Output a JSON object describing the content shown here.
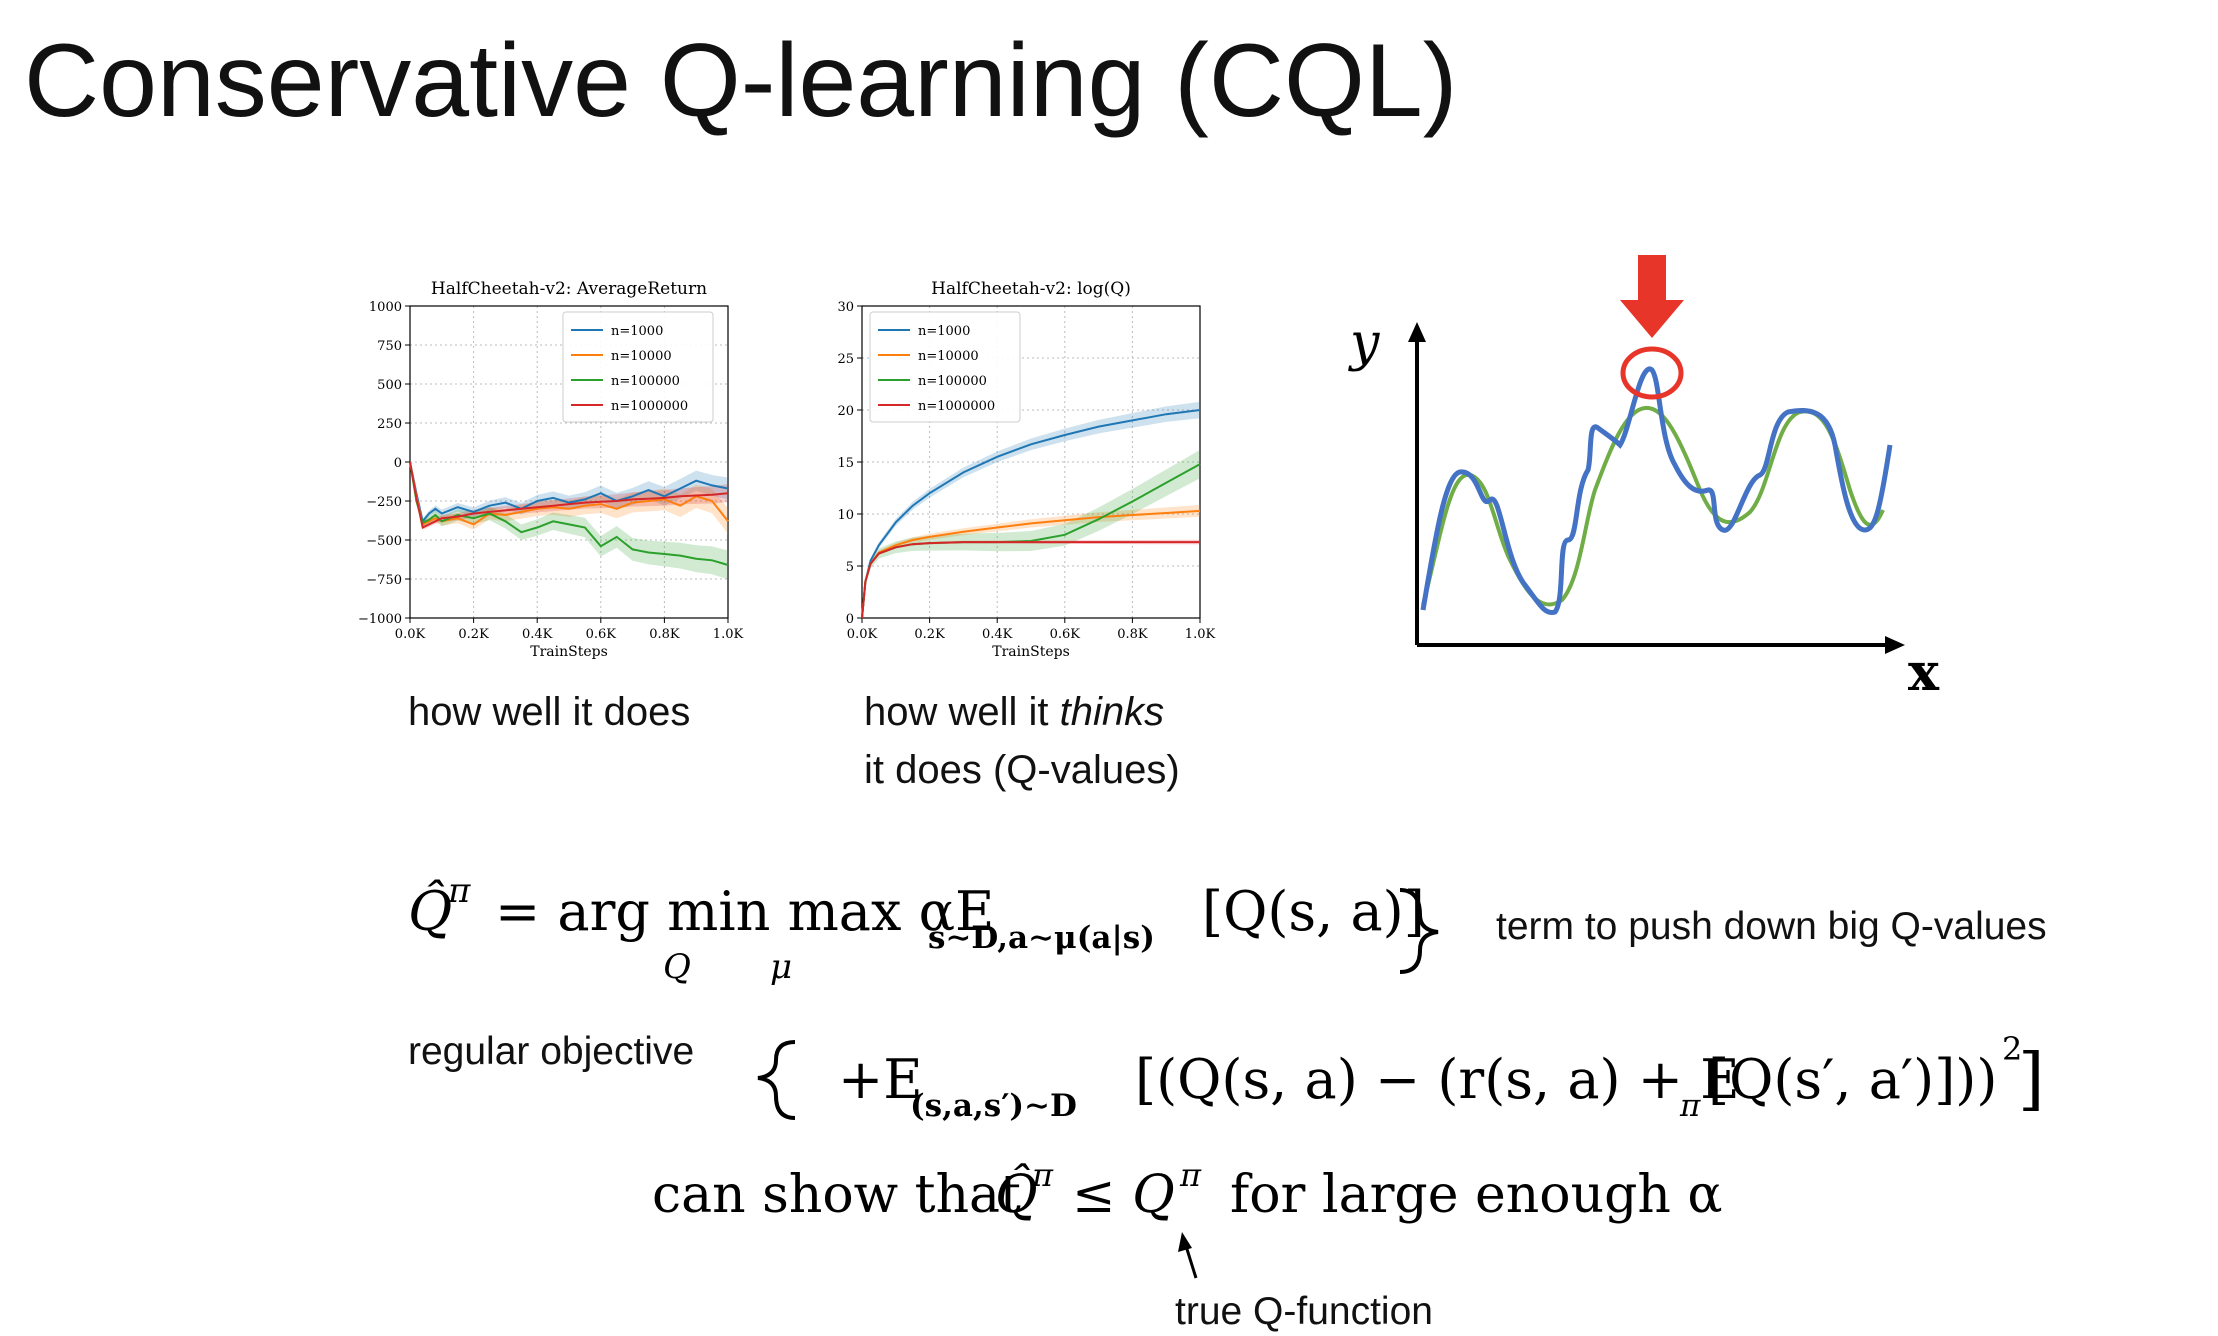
{
  "slide": {
    "title": "Conservative Q-learning (CQL)"
  },
  "captions": {
    "left": "how well it does",
    "middle_line1_pre": "how well it ",
    "middle_line1_em": "thinks",
    "middle_line2": "it does (Q-values)"
  },
  "sketch": {
    "y_label": "y",
    "x_label": "x",
    "colors": {
      "fit": "#4472c4",
      "true": "#70ad47",
      "marker": "#e8352a"
    }
  },
  "equations": {
    "line1_lhs": "Q̂",
    "line1_sup": "π",
    "line1_eq": "= arg min max αE",
    "line1_min_sub": "Q",
    "line1_max_sub": "μ",
    "line1_E_sub": "s∼D,a∼μ(a|s)",
    "line1_rhs": "[Q(s, a)]",
    "line2_E": "+E",
    "line2_E_sub": "(s,a,s′)∼D",
    "line2_body": "[(Q(s, a) − (r(s, a) + E",
    "line2_pi_sub": "π",
    "line2_body2": "[Q(s′, a′)]))",
    "line2_sq": "2",
    "line2_close": "]",
    "line3_pre": "can show that",
    "line3_Qhat": "Q̂",
    "line3_pi1": "π",
    "line3_leq": "≤ Q",
    "line3_pi2": "π",
    "line3_post": "for large enough α"
  },
  "annotations": {
    "push_down": "term to push down big Q-values",
    "regular": "regular objective",
    "true_q": "true Q-function"
  },
  "chart_data": [
    {
      "type": "line",
      "title": "HalfCheetah-v2: AverageReturn",
      "xlabel": "TrainSteps",
      "ylabel": "",
      "xlim": [
        0,
        1000
      ],
      "ylim": [
        -1000,
        1000
      ],
      "xticks": [
        "0.0K",
        "0.2K",
        "0.4K",
        "0.6K",
        "0.8K",
        "1.0K"
      ],
      "yticks": [
        "1000",
        "750",
        "500",
        "250",
        "0",
        "−250",
        "−500",
        "−750",
        "−1000"
      ],
      "ytick_values": [
        1000,
        750,
        500,
        250,
        0,
        -250,
        -500,
        -750,
        -1000
      ],
      "grid": true,
      "legend_position": "top-right",
      "x": [
        0,
        20,
        40,
        60,
        80,
        100,
        150,
        200,
        250,
        300,
        350,
        400,
        450,
        500,
        550,
        600,
        650,
        700,
        750,
        800,
        850,
        900,
        950,
        1000
      ],
      "series": [
        {
          "name": "n=1000",
          "color": "#1f77b4",
          "values": [
            0,
            -200,
            -380,
            -330,
            -300,
            -330,
            -290,
            -320,
            -280,
            -260,
            -300,
            -250,
            -230,
            -260,
            -240,
            -200,
            -250,
            -220,
            -180,
            -220,
            -170,
            -120,
            -150,
            -170
          ]
        },
        {
          "name": "n=10000",
          "color": "#ff7f0e",
          "values": [
            0,
            -220,
            -400,
            -380,
            -360,
            -380,
            -360,
            -400,
            -330,
            -340,
            -320,
            -300,
            -290,
            -300,
            -280,
            -270,
            -300,
            -260,
            -250,
            -240,
            -280,
            -220,
            -250,
            -380
          ]
        },
        {
          "name": "n=100000",
          "color": "#2ca02c",
          "values": [
            0,
            -250,
            -390,
            -370,
            -340,
            -380,
            -340,
            -360,
            -330,
            -380,
            -450,
            -420,
            -380,
            -400,
            -420,
            -540,
            -480,
            -560,
            -580,
            -590,
            -600,
            -620,
            -630,
            -660
          ]
        },
        {
          "name": "n=1000000",
          "color": "#d62728",
          "values": [
            0,
            -230,
            -420,
            -400,
            -380,
            -360,
            -350,
            -330,
            -320,
            -310,
            -300,
            -290,
            -280,
            -270,
            -260,
            -255,
            -250,
            -240,
            -235,
            -230,
            -220,
            -215,
            -210,
            -200
          ]
        }
      ]
    },
    {
      "type": "line",
      "title": "HalfCheetah-v2: log(Q)",
      "xlabel": "TrainSteps",
      "ylabel": "",
      "xlim": [
        0,
        1000
      ],
      "ylim": [
        0,
        30
      ],
      "xticks": [
        "0.0K",
        "0.2K",
        "0.4K",
        "0.6K",
        "0.8K",
        "1.0K"
      ],
      "yticks": [
        "30",
        "25",
        "20",
        "15",
        "10",
        "5",
        "0"
      ],
      "ytick_values": [
        30,
        25,
        20,
        15,
        10,
        5,
        0
      ],
      "grid": true,
      "legend_position": "top-left",
      "x": [
        0,
        10,
        25,
        50,
        100,
        150,
        200,
        300,
        400,
        500,
        600,
        700,
        800,
        900,
        1000
      ],
      "series": [
        {
          "name": "n=1000",
          "color": "#1f77b4",
          "values": [
            0,
            3.5,
            5.5,
            7,
            9.2,
            10.8,
            12,
            14,
            15.5,
            16.7,
            17.6,
            18.4,
            19,
            19.6,
            20
          ]
        },
        {
          "name": "n=10000",
          "color": "#ff7f0e",
          "values": [
            0,
            3.5,
            5.2,
            6.3,
            7,
            7.5,
            7.8,
            8.3,
            8.7,
            9.1,
            9.4,
            9.7,
            9.9,
            10.1,
            10.3
          ]
        },
        {
          "name": "n=100000",
          "color": "#2ca02c",
          "values": [
            0,
            3.5,
            5.2,
            6.2,
            6.8,
            7.1,
            7.2,
            7.3,
            7.3,
            7.4,
            8.0,
            9.5,
            11.2,
            13.0,
            14.8
          ]
        },
        {
          "name": "n=1000000",
          "color": "#d62728",
          "values": [
            0,
            3.5,
            5.2,
            6.2,
            6.8,
            7.1,
            7.2,
            7.3,
            7.3,
            7.3,
            7.3,
            7.3,
            7.3,
            7.3,
            7.3
          ]
        }
      ]
    }
  ]
}
